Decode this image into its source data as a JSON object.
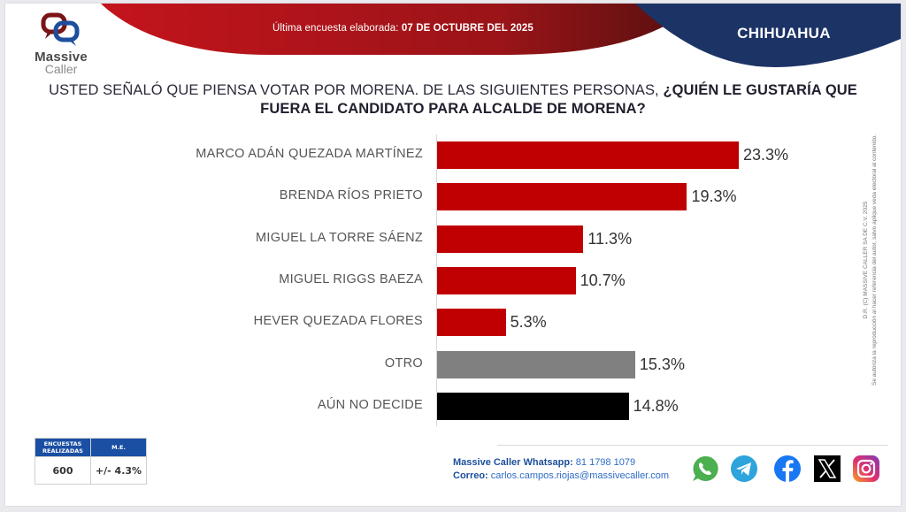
{
  "header": {
    "logo_line1": "Massive",
    "logo_line2": "Caller",
    "date_prefix": "Última encuesta elaborada:",
    "date_value": "07 DE OCTUBRE DEL 2025",
    "region": "CHIHUAHUA"
  },
  "question": {
    "normal": "USTED SEÑALÓ QUE PIENSA VOTAR POR MORENA. DE LAS SIGUIENTES PERSONAS,",
    "bold": "¿QUIÉN LE GUSTARÍA QUE FUERA EL CANDIDATO PARA ALCALDE DE MORENA?"
  },
  "chart_data": {
    "type": "bar",
    "orientation": "horizontal",
    "title": "USTED SEÑALÓ QUE PIENSA VOTAR POR MORENA. DE LAS SIGUIENTES PERSONAS, ¿QUIÉN LE GUSTARÍA QUE FUERA EL CANDIDATO PARA ALCALDE DE MORENA?",
    "xlabel": "",
    "ylabel": "",
    "xlim": [
      0,
      25
    ],
    "grid": false,
    "categories": [
      "MARCO ADÁN QUEZADA MARTÍNEZ",
      "BRENDA RÍOS PRIETO",
      "MIGUEL LA TORRE SÁENZ",
      "MIGUEL RIGGS BAEZA",
      "HEVER QUEZADA FLORES",
      "OTRO",
      "AÚN NO DECIDE"
    ],
    "values": [
      23.3,
      19.3,
      11.3,
      10.7,
      5.3,
      15.3,
      14.8
    ],
    "value_labels": [
      "23.3%",
      "19.3%",
      "11.3%",
      "10.7%",
      "5.3%",
      "15.3%",
      "14.8%"
    ],
    "colors": [
      "#c00000",
      "#c00000",
      "#c00000",
      "#c00000",
      "#c00000",
      "#808080",
      "#000000"
    ],
    "unit": "%"
  },
  "copyright": {
    "line1": "D.R. (C) MASSIVE CALLER SA DE C.V. 2025",
    "line2": "Se autoriza la reproducción al hacer referencia del autor, salvo aplique veda electoral al contenido."
  },
  "stats": {
    "col1_header": "ENCUESTAS REALIZADAS",
    "col2_header": "M.E.",
    "col1_value": "600",
    "col2_value": "+/- 4.3%"
  },
  "contact": {
    "whatsapp_label": "Massive Caller Whatsapp:",
    "whatsapp_number": "81 1798 1079",
    "email_label": "Correo:",
    "email": "carlos.campos.riojas@massivecaller.com"
  },
  "social": [
    {
      "icon": "whatsapp-icon",
      "color": "#4caf50"
    },
    {
      "icon": "telegram-icon",
      "color": "#2ea3dc"
    },
    {
      "icon": "facebook-icon",
      "color": "#1877f2"
    },
    {
      "icon": "x-icon",
      "color": "#000000"
    },
    {
      "icon": "instagram-icon",
      "color": "#d62976"
    }
  ],
  "colors": {
    "brand_red": "#b5121b",
    "brand_navy": "#1c3366",
    "bar_red": "#c00000",
    "table_blue": "#1a4fa3"
  }
}
